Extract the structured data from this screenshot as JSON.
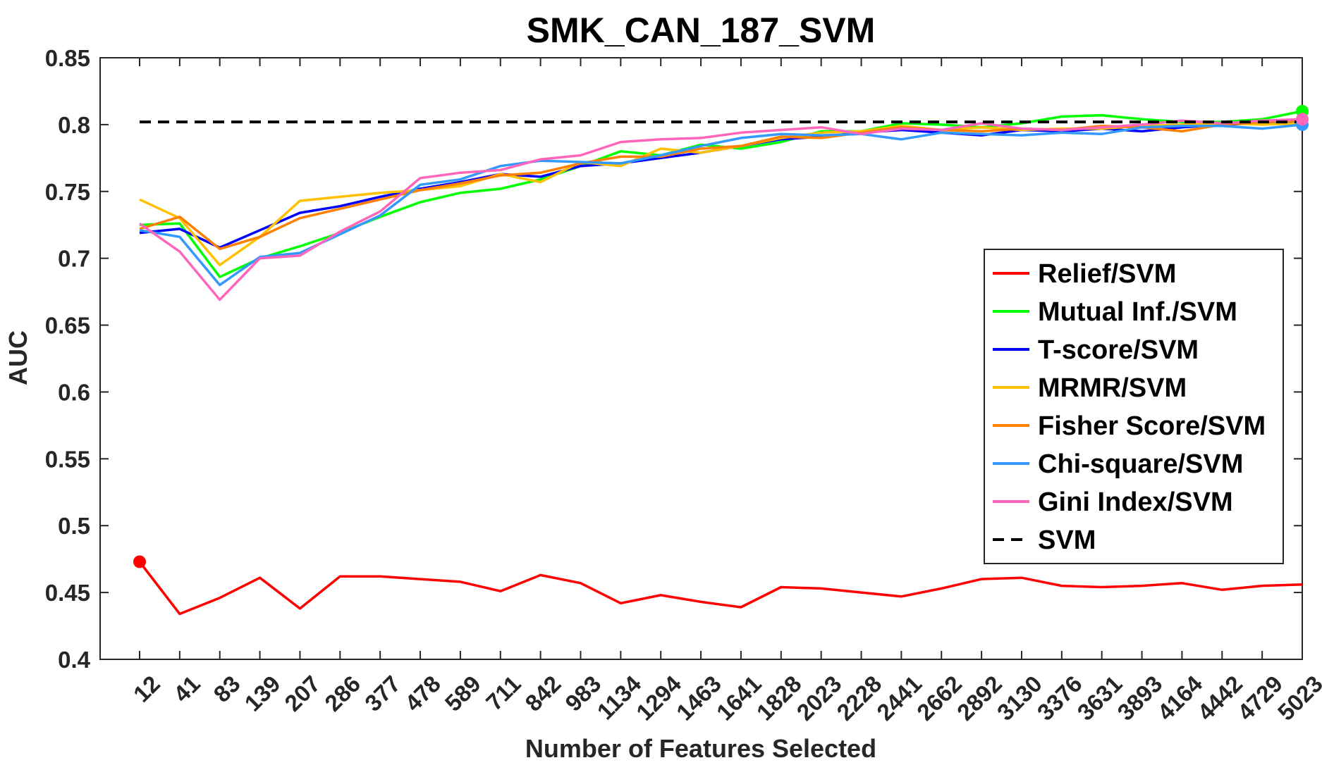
{
  "chart_data": {
    "type": "line",
    "title": "SMK_CAN_187_SVM",
    "xlabel": "Number of Features Selected",
    "ylabel": "AUC",
    "ylim": [
      0.4,
      0.85
    ],
    "yticks": [
      "0.4",
      "0.45",
      "0.5",
      "0.55",
      "0.6",
      "0.65",
      "0.7",
      "0.75",
      "0.8",
      "0.85"
    ],
    "categories": [
      "12",
      "41",
      "83",
      "139",
      "207",
      "286",
      "377",
      "478",
      "589",
      "711",
      "842",
      "983",
      "1134",
      "1294",
      "1463",
      "1641",
      "1828",
      "2023",
      "2228",
      "2441",
      "2662",
      "2892",
      "3130",
      "3376",
      "3631",
      "3893",
      "4164",
      "4442",
      "4729",
      "5023"
    ],
    "grid": false,
    "legend_position": "right",
    "series": [
      {
        "name": "Relief/SVM",
        "color": "#ff0000",
        "dash": "solid",
        "marker_at": "first",
        "values": [
          0.473,
          0.434,
          0.446,
          0.461,
          0.438,
          0.462,
          0.462,
          0.46,
          0.458,
          0.451,
          0.463,
          0.457,
          0.442,
          0.448,
          0.443,
          0.439,
          0.454,
          0.453,
          0.45,
          0.447,
          0.453,
          0.46,
          0.461,
          0.455,
          0.454,
          0.455,
          0.457,
          0.452,
          0.455,
          0.456
        ]
      },
      {
        "name": "Mutual Inf./SVM",
        "color": "#00ff00",
        "dash": "solid",
        "marker_at": "last",
        "values": [
          0.725,
          0.726,
          0.686,
          0.7,
          0.709,
          0.719,
          0.731,
          0.742,
          0.749,
          0.752,
          0.759,
          0.769,
          0.78,
          0.777,
          0.785,
          0.782,
          0.787,
          0.795,
          0.795,
          0.801,
          0.8,
          0.798,
          0.801,
          0.806,
          0.807,
          0.804,
          0.802,
          0.802,
          0.804,
          0.81
        ]
      },
      {
        "name": "T-score/SVM",
        "color": "#0000ff",
        "dash": "solid",
        "marker_at": "none",
        "values": [
          0.719,
          0.722,
          0.708,
          0.721,
          0.734,
          0.739,
          0.746,
          0.752,
          0.757,
          0.763,
          0.761,
          0.769,
          0.771,
          0.775,
          0.779,
          0.784,
          0.789,
          0.791,
          0.794,
          0.796,
          0.794,
          0.792,
          0.796,
          0.795,
          0.797,
          0.795,
          0.798,
          0.8,
          0.801,
          0.802
        ]
      },
      {
        "name": "MRMR/SVM",
        "color": "#ffc000",
        "dash": "solid",
        "marker_at": "none",
        "values": [
          0.744,
          0.73,
          0.695,
          0.716,
          0.743,
          0.746,
          0.749,
          0.751,
          0.754,
          0.763,
          0.757,
          0.772,
          0.769,
          0.782,
          0.779,
          0.784,
          0.79,
          0.794,
          0.795,
          0.799,
          0.796,
          0.798,
          0.796,
          0.797,
          0.797,
          0.799,
          0.8,
          0.801,
          0.8,
          0.801
        ]
      },
      {
        "name": "Fisher Score/SVM",
        "color": "#ff8000",
        "dash": "solid",
        "marker_at": "none",
        "values": [
          0.722,
          0.731,
          0.707,
          0.716,
          0.73,
          0.737,
          0.744,
          0.751,
          0.756,
          0.762,
          0.764,
          0.771,
          0.776,
          0.776,
          0.782,
          0.784,
          0.791,
          0.79,
          0.794,
          0.798,
          0.796,
          0.795,
          0.797,
          0.796,
          0.799,
          0.798,
          0.795,
          0.8,
          0.802,
          0.803
        ]
      },
      {
        "name": "Chi-square/SVM",
        "color": "#3399ff",
        "dash": "solid",
        "marker_at": "last",
        "values": [
          0.721,
          0.716,
          0.68,
          0.701,
          0.704,
          0.718,
          0.732,
          0.755,
          0.759,
          0.769,
          0.773,
          0.772,
          0.771,
          0.777,
          0.784,
          0.79,
          0.793,
          0.792,
          0.793,
          0.789,
          0.794,
          0.793,
          0.792,
          0.794,
          0.793,
          0.798,
          0.799,
          0.799,
          0.797,
          0.8
        ]
      },
      {
        "name": "Gini Index/SVM",
        "color": "#ff66bb",
        "dash": "solid",
        "marker_at": "last",
        "values": [
          0.726,
          0.705,
          0.669,
          0.7,
          0.702,
          0.72,
          0.735,
          0.76,
          0.764,
          0.766,
          0.774,
          0.777,
          0.787,
          0.789,
          0.79,
          0.794,
          0.796,
          0.798,
          0.793,
          0.797,
          0.796,
          0.801,
          0.797,
          0.796,
          0.798,
          0.8,
          0.803,
          0.801,
          0.803,
          0.804
        ]
      },
      {
        "name": "SVM",
        "color": "#000000",
        "dash": "dashed",
        "marker_at": "none",
        "values": [
          0.802,
          0.802,
          0.802,
          0.802,
          0.802,
          0.802,
          0.802,
          0.802,
          0.802,
          0.802,
          0.802,
          0.802,
          0.802,
          0.802,
          0.802,
          0.802,
          0.802,
          0.802,
          0.802,
          0.802,
          0.802,
          0.802,
          0.802,
          0.802,
          0.802,
          0.802,
          0.802,
          0.802,
          0.802,
          0.802
        ]
      }
    ]
  }
}
